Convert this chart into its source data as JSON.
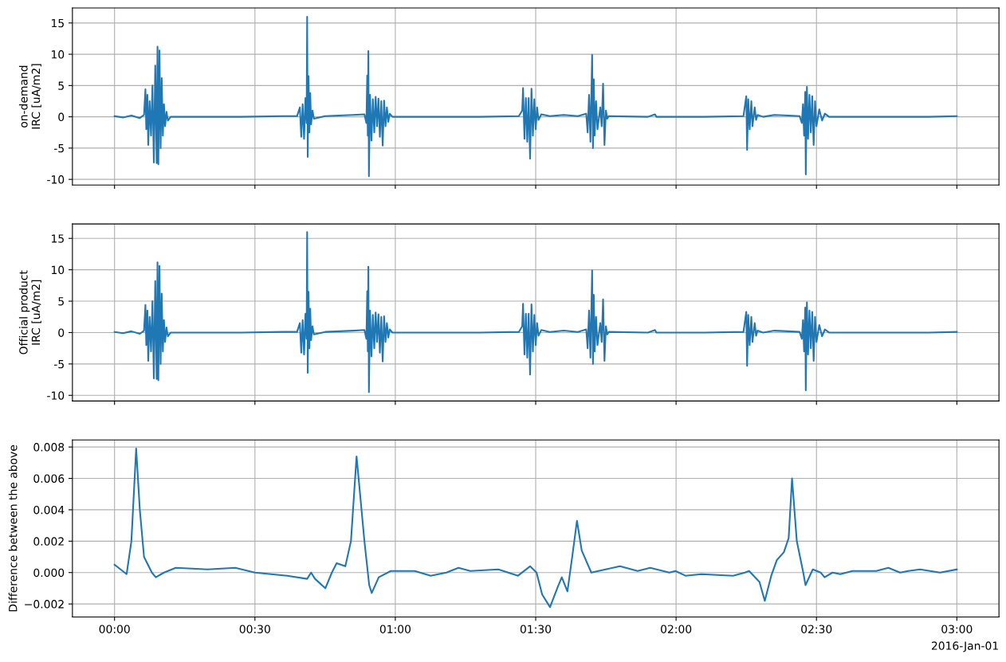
{
  "chart_data": [
    {
      "type": "line",
      "ylabel": "on-demand\nIRC [uA/m2]",
      "xlim": [
        -0.15,
        3.15
      ],
      "ylim": [
        -10.9,
        17.4
      ],
      "yticks": [
        -10,
        -5,
        0,
        5,
        10,
        15
      ],
      "tick_labels": "y",
      "grid": true,
      "xticks": [
        {
          "value": 0,
          "label": null
        },
        {
          "value": 0.5,
          "label": null
        },
        {
          "value": 1,
          "label": null
        },
        {
          "value": 1.5,
          "label": null
        },
        {
          "value": 2,
          "label": null
        },
        {
          "value": 2.5,
          "label": null
        },
        {
          "value": 3,
          "label": null
        }
      ],
      "series": [
        {
          "color": "#1f77b4",
          "x": [
            0.0,
            0.03,
            0.06,
            0.09,
            0.105,
            0.11,
            0.113,
            0.117,
            0.12,
            0.125,
            0.13,
            0.135,
            0.14,
            0.145,
            0.15,
            0.153,
            0.156,
            0.16,
            0.164,
            0.168,
            0.172,
            0.176,
            0.18,
            0.185,
            0.19,
            0.2,
            0.3,
            0.45,
            0.6,
            0.65,
            0.66,
            0.665,
            0.67,
            0.675,
            0.68,
            0.684,
            0.686,
            0.688,
            0.691,
            0.694,
            0.697,
            0.7,
            0.705,
            0.71,
            0.75,
            0.8,
            0.85,
            0.89,
            0.897,
            0.9,
            0.902,
            0.904,
            0.906,
            0.91,
            0.915,
            0.92,
            0.925,
            0.93,
            0.935,
            0.94,
            0.945,
            0.95,
            0.955,
            0.96,
            0.965,
            0.97,
            0.975,
            0.98,
            0.99,
            1.1,
            1.3,
            1.44,
            1.452,
            1.455,
            1.46,
            1.465,
            1.47,
            1.475,
            1.48,
            1.485,
            1.49,
            1.495,
            1.5,
            1.505,
            1.51,
            1.52,
            1.55,
            1.6,
            1.65,
            1.68,
            1.685,
            1.69,
            1.695,
            1.701,
            1.704,
            1.707,
            1.71,
            1.715,
            1.72,
            1.73,
            1.735,
            1.74,
            1.745,
            1.75,
            1.755,
            1.76,
            1.9,
            1.925,
            1.93,
            2.1,
            2.24,
            2.25,
            2.253,
            2.257,
            2.262,
            2.268,
            2.272,
            2.28,
            2.285,
            2.29,
            2.31,
            2.35,
            2.4,
            2.44,
            2.448,
            2.452,
            2.456,
            2.46,
            2.462,
            2.466,
            2.47,
            2.475,
            2.48,
            2.485,
            2.49,
            2.495,
            2.5,
            2.51,
            2.52,
            2.53,
            2.545,
            2.7,
            2.9,
            3.0
          ],
          "values": [
            0.1,
            -0.1,
            0.2,
            -0.2,
            0.3,
            4.4,
            -2,
            3.5,
            -4.5,
            2.5,
            -3.0,
            5.0,
            -7.3,
            8.2,
            -7.4,
            11.2,
            -7.6,
            10.6,
            -5.0,
            6.2,
            -3.0,
            2.0,
            -1.5,
            0.8,
            -0.6,
            0.0,
            0.0,
            0.0,
            0.1,
            0.1,
            1.5,
            -3.2,
            2.0,
            -3.5,
            3.0,
            -1,
            16.0,
            -6.4,
            6.5,
            -2.5,
            3.8,
            -1.2,
            1.0,
            -0.3,
            0.1,
            0.2,
            0.3,
            0.4,
            -1,
            6.6,
            -3,
            10.5,
            -9.5,
            3.5,
            -3.8,
            2.8,
            -2.5,
            3.2,
            -1.5,
            2.9,
            -3.2,
            2.5,
            -4.6,
            2.6,
            -1.5,
            1.5,
            -0.8,
            0.5,
            0.0,
            0.0,
            0.0,
            0.1,
            1.0,
            4.6,
            -3.5,
            3.0,
            -4.0,
            3.0,
            -6.7,
            4.5,
            -3.0,
            2.8,
            -2.0,
            1.5,
            -0.5,
            0.4,
            0.1,
            0.3,
            0.1,
            0.5,
            -2.5,
            3.5,
            -4.0,
            9.9,
            -5.0,
            6.0,
            -3.0,
            2.5,
            -2.0,
            1.5,
            -1.5,
            5.3,
            -4.5,
            1.0,
            -0.3,
            0.1,
            0.0,
            0.4,
            0.0,
            0.0,
            0.1,
            3.3,
            -5.3,
            2.8,
            -2.0,
            2.5,
            -1.5,
            1.5,
            -0.5,
            0.3,
            0.0,
            0.3,
            0.2,
            0.1,
            -1.0,
            2.0,
            -3.0,
            4.0,
            -9.2,
            4.8,
            -3.5,
            3.5,
            -2.5,
            3.3,
            -4.5,
            2.5,
            -1.5,
            1.2,
            -0.6,
            0.5,
            0.0,
            0.0,
            0.0,
            0.1
          ]
        }
      ]
    },
    {
      "type": "line",
      "ylabel": "Official product\nIRC [uA/m2]",
      "xlim": [
        -0.15,
        3.15
      ],
      "ylim": [
        -10.9,
        17.3
      ],
      "yticks": [
        -10,
        -5,
        0,
        5,
        10,
        15
      ],
      "tick_labels": "y",
      "grid": true,
      "xticks": [
        {
          "value": 0,
          "label": null
        },
        {
          "value": 0.5,
          "label": null
        },
        {
          "value": 1,
          "label": null
        },
        {
          "value": 1.5,
          "label": null
        },
        {
          "value": 2,
          "label": null
        },
        {
          "value": 2.5,
          "label": null
        },
        {
          "value": 3,
          "label": null
        }
      ],
      "series": [
        {
          "color": "#1f77b4",
          "x": [
            0.0,
            0.03,
            0.06,
            0.09,
            0.105,
            0.11,
            0.113,
            0.117,
            0.12,
            0.125,
            0.13,
            0.135,
            0.14,
            0.145,
            0.15,
            0.153,
            0.156,
            0.16,
            0.164,
            0.168,
            0.172,
            0.176,
            0.18,
            0.185,
            0.19,
            0.2,
            0.3,
            0.45,
            0.6,
            0.65,
            0.66,
            0.665,
            0.67,
            0.675,
            0.68,
            0.684,
            0.686,
            0.688,
            0.691,
            0.694,
            0.697,
            0.7,
            0.705,
            0.71,
            0.75,
            0.8,
            0.85,
            0.89,
            0.897,
            0.9,
            0.902,
            0.904,
            0.906,
            0.91,
            0.915,
            0.92,
            0.925,
            0.93,
            0.935,
            0.94,
            0.945,
            0.95,
            0.955,
            0.96,
            0.965,
            0.97,
            0.975,
            0.98,
            0.99,
            1.1,
            1.3,
            1.44,
            1.452,
            1.455,
            1.46,
            1.465,
            1.47,
            1.475,
            1.48,
            1.485,
            1.49,
            1.495,
            1.5,
            1.505,
            1.51,
            1.52,
            1.55,
            1.6,
            1.65,
            1.68,
            1.685,
            1.69,
            1.695,
            1.701,
            1.704,
            1.707,
            1.71,
            1.715,
            1.72,
            1.73,
            1.735,
            1.74,
            1.745,
            1.75,
            1.755,
            1.76,
            1.9,
            1.925,
            1.93,
            2.1,
            2.24,
            2.25,
            2.253,
            2.257,
            2.262,
            2.268,
            2.272,
            2.28,
            2.285,
            2.29,
            2.31,
            2.35,
            2.4,
            2.44,
            2.448,
            2.452,
            2.456,
            2.46,
            2.462,
            2.466,
            2.47,
            2.475,
            2.48,
            2.485,
            2.49,
            2.495,
            2.5,
            2.51,
            2.52,
            2.53,
            2.545,
            2.7,
            2.9,
            3.0
          ],
          "values": [
            0.1,
            -0.1,
            0.2,
            -0.2,
            0.3,
            4.4,
            -2,
            3.5,
            -4.5,
            2.5,
            -3.0,
            5.0,
            -7.3,
            8.2,
            -7.4,
            11.2,
            -7.6,
            10.6,
            -5.0,
            6.2,
            -3.0,
            2.0,
            -1.5,
            0.8,
            -0.6,
            0.0,
            0.0,
            0.0,
            0.1,
            0.1,
            1.5,
            -3.2,
            2.0,
            -3.5,
            3.0,
            -1,
            16.0,
            -6.4,
            6.5,
            -2.5,
            3.8,
            -1.2,
            1.0,
            -0.3,
            0.1,
            0.2,
            0.3,
            0.4,
            -1,
            6.6,
            -3,
            10.5,
            -9.5,
            3.5,
            -3.8,
            2.8,
            -2.5,
            3.2,
            -1.5,
            2.9,
            -3.2,
            2.5,
            -4.6,
            2.6,
            -1.5,
            1.5,
            -0.8,
            0.5,
            0.0,
            0.0,
            0.0,
            0.1,
            1.0,
            4.6,
            -3.5,
            3.0,
            -4.0,
            3.0,
            -6.7,
            4.5,
            -3.0,
            2.8,
            -2.0,
            1.5,
            -0.5,
            0.4,
            0.1,
            0.3,
            0.1,
            0.5,
            -2.5,
            3.5,
            -4.0,
            9.9,
            -5.0,
            6.0,
            -3.0,
            2.5,
            -2.0,
            1.5,
            -1.5,
            5.3,
            -4.5,
            1.0,
            -0.3,
            0.1,
            0.0,
            0.4,
            0.0,
            0.0,
            0.1,
            3.3,
            -5.3,
            2.8,
            -2.0,
            2.5,
            -1.5,
            1.5,
            -0.5,
            0.3,
            0.0,
            0.3,
            0.2,
            0.1,
            -1.0,
            2.0,
            -3.0,
            4.0,
            -9.2,
            4.8,
            -3.5,
            3.5,
            -2.5,
            3.3,
            -4.5,
            2.5,
            -1.5,
            1.2,
            -0.6,
            0.5,
            0.0,
            0.0,
            0.0,
            0.1
          ]
        }
      ]
    },
    {
      "type": "line",
      "ylabel": "Difference between the above",
      "xlim": [
        -0.15,
        3.15
      ],
      "ylim": [
        -0.00283,
        0.00845
      ],
      "yticks": [
        {
          "value": -0.002,
          "label": "−0.002"
        },
        {
          "value": 0.0,
          "label": "0.000"
        },
        {
          "value": 0.002,
          "label": "0.002"
        },
        {
          "value": 0.004,
          "label": "0.004"
        },
        {
          "value": 0.006,
          "label": "0.006"
        },
        {
          "value": 0.008,
          "label": "0.008"
        }
      ],
      "grid": true,
      "xticks": [
        {
          "value": 0,
          "label": "00:00"
        },
        {
          "value": 0.5,
          "label": "00:30"
        },
        {
          "value": 1,
          "label": "01:00"
        },
        {
          "value": 1.5,
          "label": "01:30"
        },
        {
          "value": 2,
          "label": "02:00"
        },
        {
          "value": 2.5,
          "label": "02:30"
        },
        {
          "value": 3,
          "label": "03:00"
        }
      ],
      "annotations": [
        "2016-Jan-01"
      ],
      "series": [
        {
          "color": "#1f77b4",
          "x": [
            0.0,
            0.043,
            0.06,
            0.077,
            0.09,
            0.105,
            0.133,
            0.147,
            0.176,
            0.218,
            0.332,
            0.43,
            0.5,
            0.615,
            0.686,
            0.7,
            0.714,
            0.751,
            0.774,
            0.791,
            0.822,
            0.842,
            0.862,
            0.89,
            0.907,
            0.916,
            0.941,
            0.984,
            1.069,
            1.126,
            1.182,
            1.225,
            1.267,
            1.367,
            1.437,
            1.48,
            1.503,
            1.523,
            1.551,
            1.579,
            1.593,
            1.613,
            1.63,
            1.647,
            1.664,
            1.698,
            1.749,
            1.8,
            1.863,
            1.908,
            1.976,
            1.998,
            2.033,
            2.09,
            2.203,
            2.245,
            2.26,
            2.297,
            2.316,
            2.339,
            2.359,
            2.384,
            2.401,
            2.413,
            2.43,
            2.453,
            2.461,
            2.487,
            2.515,
            2.529,
            2.557,
            2.585,
            2.628,
            2.713,
            2.756,
            2.798,
            2.827,
            2.869,
            2.94,
            3.0
          ],
          "values": [
            0.0005,
            -0.0001,
            0.002,
            0.0079,
            0.004,
            0.001,
            0.0,
            -0.0003,
            0.0,
            0.0003,
            0.0002,
            0.0003,
            0.0,
            -0.0002,
            -0.0004,
            0.0,
            -0.0004,
            -0.001,
            0.0,
            0.0006,
            0.0004,
            0.002,
            0.0074,
            0.002,
            -0.0008,
            -0.0013,
            -0.0003,
            0.0001,
            0.0001,
            -0.0002,
            0.0,
            0.0003,
            0.0001,
            0.0002,
            -0.0002,
            0.0004,
            0.0,
            -0.0014,
            -0.0022,
            -0.0009,
            -0.0003,
            -0.0012,
            0.001,
            0.0033,
            0.0014,
            0.0,
            0.0002,
            0.0004,
            0.0001,
            0.0003,
            0.0,
            0.0001,
            -0.0002,
            -0.0001,
            -0.0002,
            0.0,
            0.0001,
            -0.0006,
            -0.0018,
            -0.0002,
            0.0008,
            0.0013,
            0.0022,
            0.006,
            0.002,
            0.0,
            -0.0008,
            0.0002,
            0.0,
            -0.0003,
            0.0,
            -0.0001,
            0.0001,
            0.0001,
            0.0003,
            0.0,
            0.0001,
            0.0002,
            0.0,
            0.0002
          ]
        }
      ]
    }
  ]
}
